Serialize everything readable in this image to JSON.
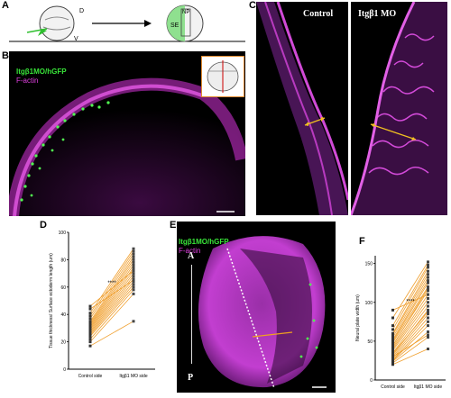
{
  "panels": {
    "A": {
      "label": "A",
      "d_label": "D",
      "v_label": "V",
      "np_label": "NP",
      "se_label": "SE"
    },
    "B": {
      "label": "B",
      "legend_gfp": "Itgβ1MO/hGFP",
      "legend_actin": "F-actin"
    },
    "C": {
      "label": "C",
      "left_title": "Control",
      "right_title": "Itgβ1 MO"
    },
    "D": {
      "label": "D"
    },
    "E": {
      "label": "E",
      "legend_gfp": "Itgβ1MO/hGFP",
      "legend_actin": "F-actin",
      "axis_a": "A",
      "axis_p": "P"
    },
    "F": {
      "label": "F"
    }
  },
  "chart_data": [
    {
      "id": "D",
      "type": "scatter",
      "ylabel": "Tissue thickness/ Surface ectoderm length (um)",
      "categories": [
        "Control side",
        "Itgβ1 MO side"
      ],
      "yticks": [
        0,
        20,
        40,
        60,
        80,
        100
      ],
      "ylim": [
        0,
        100
      ],
      "significance": "****",
      "pairs": [
        [
          17,
          35
        ],
        [
          20,
          55
        ],
        [
          22,
          58
        ],
        [
          24,
          60
        ],
        [
          25,
          62
        ],
        [
          26,
          64
        ],
        [
          27,
          66
        ],
        [
          28,
          68
        ],
        [
          29,
          70
        ],
        [
          30,
          72
        ],
        [
          31,
          74
        ],
        [
          32,
          76
        ],
        [
          33,
          78
        ],
        [
          34,
          80
        ],
        [
          35,
          82
        ],
        [
          37,
          84
        ],
        [
          39,
          86
        ],
        [
          41,
          88
        ],
        [
          44,
          65
        ],
        [
          46,
          72
        ]
      ]
    },
    {
      "id": "F",
      "type": "scatter",
      "ylabel": "Neural plate width (um)",
      "categories": [
        "Control side",
        "Itgβ1 MO side"
      ],
      "yticks": [
        0,
        50,
        100,
        150
      ],
      "ylim": [
        0,
        160
      ],
      "significance": "****",
      "pairs": [
        [
          20,
          40
        ],
        [
          22,
          55
        ],
        [
          24,
          62
        ],
        [
          25,
          70
        ],
        [
          26,
          75
        ],
        [
          28,
          80
        ],
        [
          30,
          85
        ],
        [
          32,
          90
        ],
        [
          35,
          95
        ],
        [
          38,
          100
        ],
        [
          40,
          105
        ],
        [
          42,
          110
        ],
        [
          45,
          115
        ],
        [
          48,
          120
        ],
        [
          50,
          125
        ],
        [
          52,
          128
        ],
        [
          55,
          132
        ],
        [
          58,
          136
        ],
        [
          60,
          140
        ],
        [
          65,
          145
        ],
        [
          70,
          148
        ],
        [
          80,
          152
        ],
        [
          90,
          110
        ],
        [
          30,
          58
        ],
        [
          34,
          88
        ],
        [
          44,
          118
        ]
      ]
    }
  ]
}
